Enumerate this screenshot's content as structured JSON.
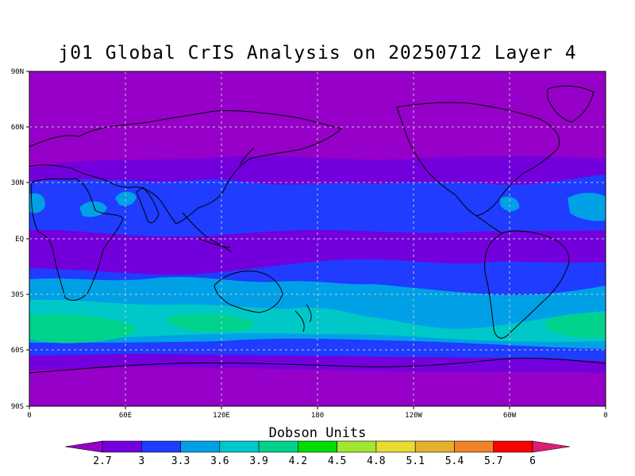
{
  "title": "j01 Global CrIS Analysis on 20250712 Layer 4",
  "map": {
    "lat_labels": [
      "90N",
      "60N",
      "30N",
      "EQ",
      "30S",
      "60S",
      "90S"
    ],
    "lon_labels": [
      "0",
      "60E",
      "120E",
      "180",
      "120W",
      "60W",
      "0"
    ],
    "grid": true
  },
  "colorbar": {
    "title": "Dobson Units",
    "ticks": [
      "2.7",
      "3",
      "3.3",
      "3.6",
      "3.9",
      "4.2",
      "4.5",
      "4.8",
      "5.1",
      "5.4",
      "5.7",
      "6"
    ],
    "colors": [
      "#9600c8",
      "#7300dc",
      "#1f3cff",
      "#00a0e6",
      "#00c8c8",
      "#00d28c",
      "#00dc00",
      "#a0e632",
      "#e6dc32",
      "#e6af2d",
      "#f08228",
      "#fa0000",
      "#dc1e78"
    ]
  },
  "colors": {
    "lt27": "#9600c8",
    "b27_30": "#7300dc",
    "b30_33": "#1f3cff",
    "b33_36": "#00a0e6",
    "b36_39": "#00c8c8",
    "b39_42": "#00d28c"
  }
}
